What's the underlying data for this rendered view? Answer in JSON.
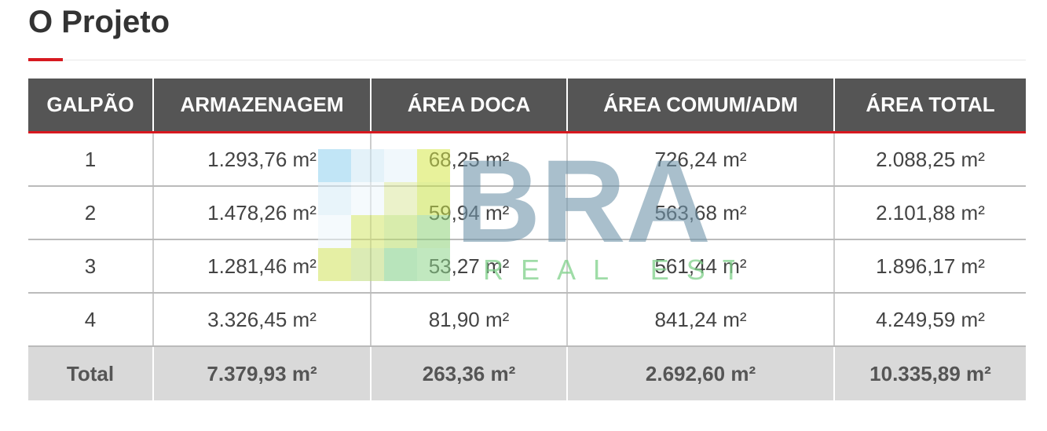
{
  "header": {
    "title": "O Projeto"
  },
  "table": {
    "columns": [
      "GALPÃO",
      "ARMAZENAGEM",
      "ÁREA DOCA",
      "ÁREA COMUM/ADM",
      "ÁREA TOTAL"
    ],
    "rows": [
      [
        "1",
        "1.293,76 m²",
        "68,25 m²",
        "726,24 m²",
        "2.088,25 m²"
      ],
      [
        "2",
        "1.478,26 m²",
        "59,94 m²",
        "563,68 m²",
        "2.101,88 m²"
      ],
      [
        "3",
        "1.281,46 m²",
        "53,27 m²",
        "561,44 m²",
        "1.896,17 m²"
      ],
      [
        "4",
        "3.326,45 m²",
        "81,90 m²",
        "841,24 m²",
        "4.249,59 m²"
      ]
    ],
    "total": [
      "Total",
      "7.379,93 m²",
      "263,36 m²",
      "2.692,60 m²",
      "10.335,89 m²"
    ]
  },
  "watermark": {
    "brand": "BRA",
    "tagline": "REAL ESTATE"
  }
}
